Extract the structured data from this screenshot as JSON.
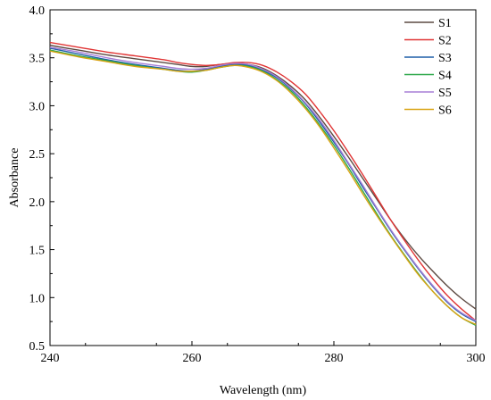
{
  "chart_data": {
    "type": "line",
    "xlabel": "Wavelength (nm)",
    "ylabel": "Absorbance",
    "xlim": [
      240,
      300
    ],
    "ylim": [
      0.5,
      4.0
    ],
    "x_ticks": [
      240,
      260,
      280,
      300
    ],
    "x_tick_labels": [
      "240",
      "260",
      "280",
      "300"
    ],
    "y_ticks": [
      0.5,
      1.0,
      1.5,
      2.0,
      2.5,
      3.0,
      3.5,
      4.0
    ],
    "y_tick_labels": [
      "0.5",
      "1.0",
      "1.5",
      "2.0",
      "2.5",
      "3.0",
      "3.5",
      "4.0"
    ],
    "grid": false,
    "legend_position": "top-right",
    "x": [
      240,
      244,
      248,
      252,
      256,
      258,
      260,
      262,
      264,
      266,
      268,
      270,
      272,
      274,
      276,
      278,
      280,
      282,
      284,
      286,
      288,
      290,
      292,
      294,
      296,
      298,
      300
    ],
    "series": [
      {
        "name": "S1",
        "color": "#5c4a42",
        "values": [
          3.63,
          3.58,
          3.53,
          3.49,
          3.45,
          3.43,
          3.41,
          3.41,
          3.43,
          3.44,
          3.43,
          3.39,
          3.31,
          3.2,
          3.06,
          2.88,
          2.68,
          2.47,
          2.25,
          2.03,
          1.81,
          1.61,
          1.43,
          1.27,
          1.12,
          0.99,
          0.88
        ]
      },
      {
        "name": "S2",
        "color": "#e03535",
        "values": [
          3.66,
          3.61,
          3.56,
          3.52,
          3.48,
          3.45,
          3.43,
          3.42,
          3.43,
          3.45,
          3.45,
          3.42,
          3.35,
          3.25,
          3.12,
          2.94,
          2.74,
          2.52,
          2.29,
          2.05,
          1.81,
          1.59,
          1.38,
          1.19,
          1.02,
          0.88,
          0.76
        ]
      },
      {
        "name": "S3",
        "color": "#1f5fa8",
        "values": [
          3.6,
          3.54,
          3.48,
          3.43,
          3.39,
          3.37,
          3.36,
          3.38,
          3.41,
          3.43,
          3.42,
          3.37,
          3.29,
          3.17,
          3.02,
          2.83,
          2.62,
          2.4,
          2.16,
          1.93,
          1.7,
          1.49,
          1.29,
          1.11,
          0.95,
          0.83,
          0.75
        ]
      },
      {
        "name": "S4",
        "color": "#2ea84a",
        "values": [
          3.58,
          3.52,
          3.47,
          3.42,
          3.38,
          3.36,
          3.35,
          3.37,
          3.4,
          3.42,
          3.41,
          3.36,
          3.27,
          3.15,
          2.99,
          2.8,
          2.59,
          2.36,
          2.12,
          1.88,
          1.65,
          1.44,
          1.24,
          1.06,
          0.91,
          0.79,
          0.71
        ]
      },
      {
        "name": "S5",
        "color": "#a77ed6",
        "values": [
          3.61,
          3.56,
          3.5,
          3.45,
          3.41,
          3.39,
          3.38,
          3.39,
          3.42,
          3.44,
          3.43,
          3.38,
          3.3,
          3.18,
          3.03,
          2.85,
          2.64,
          2.41,
          2.18,
          1.94,
          1.71,
          1.5,
          1.3,
          1.12,
          0.96,
          0.84,
          0.76
        ]
      },
      {
        "name": "S6",
        "color": "#d9a313",
        "values": [
          3.57,
          3.51,
          3.46,
          3.41,
          3.38,
          3.36,
          3.36,
          3.37,
          3.4,
          3.42,
          3.4,
          3.35,
          3.26,
          3.13,
          2.97,
          2.78,
          2.56,
          2.33,
          2.09,
          1.86,
          1.64,
          1.43,
          1.23,
          1.06,
          0.91,
          0.79,
          0.72
        ]
      }
    ]
  }
}
